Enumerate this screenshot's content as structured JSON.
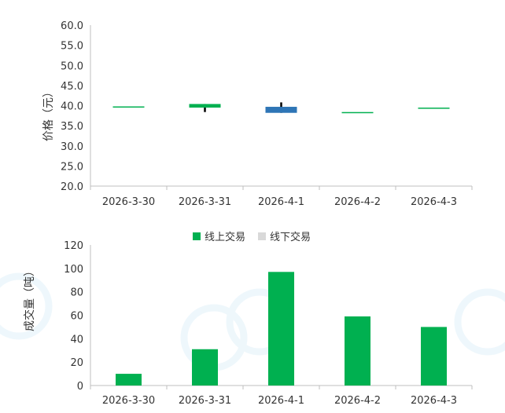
{
  "chart_data": [
    {
      "type": "candlestick",
      "ylabel": "价格（元）",
      "ylim": [
        20,
        60
      ],
      "yticks": [
        "20.0",
        "25.0",
        "30.0",
        "35.0",
        "40.0",
        "45.0",
        "50.0",
        "55.0",
        "60.0"
      ],
      "categories": [
        "2026-3-30",
        "2026-3-31",
        "2026-4-1",
        "2026-4-2",
        "2026-4-3"
      ],
      "candles": [
        {
          "open": 39.8,
          "close": 39.8,
          "high": 39.8,
          "low": 39.8,
          "direction": "up"
        },
        {
          "open": 39.5,
          "close": 40.4,
          "high": 40.4,
          "low": 38.4,
          "direction": "up"
        },
        {
          "open": 39.7,
          "close": 38.2,
          "high": 40.8,
          "low": 38.2,
          "direction": "down"
        },
        {
          "open": 38.4,
          "close": 38.4,
          "high": 38.4,
          "low": 38.4,
          "direction": "up"
        },
        {
          "open": 39.5,
          "close": 39.5,
          "high": 39.5,
          "low": 39.5,
          "direction": "up"
        }
      ],
      "colors": {
        "up": "#00b050",
        "down": "#2e75b6",
        "wick": "#000000"
      }
    },
    {
      "type": "bar",
      "ylabel": "成交量（吨）",
      "ylim": [
        0,
        120
      ],
      "yticks": [
        "0",
        "20",
        "40",
        "60",
        "80",
        "100",
        "120"
      ],
      "categories": [
        "2026-3-30",
        "2026-3-31",
        "2026-4-1",
        "2026-4-2",
        "2026-4-3"
      ],
      "legend_position": "top",
      "series": [
        {
          "name": "线上交易",
          "values": [
            10,
            31,
            97,
            59,
            50
          ],
          "color": "#00b050"
        },
        {
          "name": "线下交易",
          "values": [
            0,
            0,
            0,
            0,
            0
          ],
          "color": "#d9d9d9"
        }
      ]
    }
  ]
}
